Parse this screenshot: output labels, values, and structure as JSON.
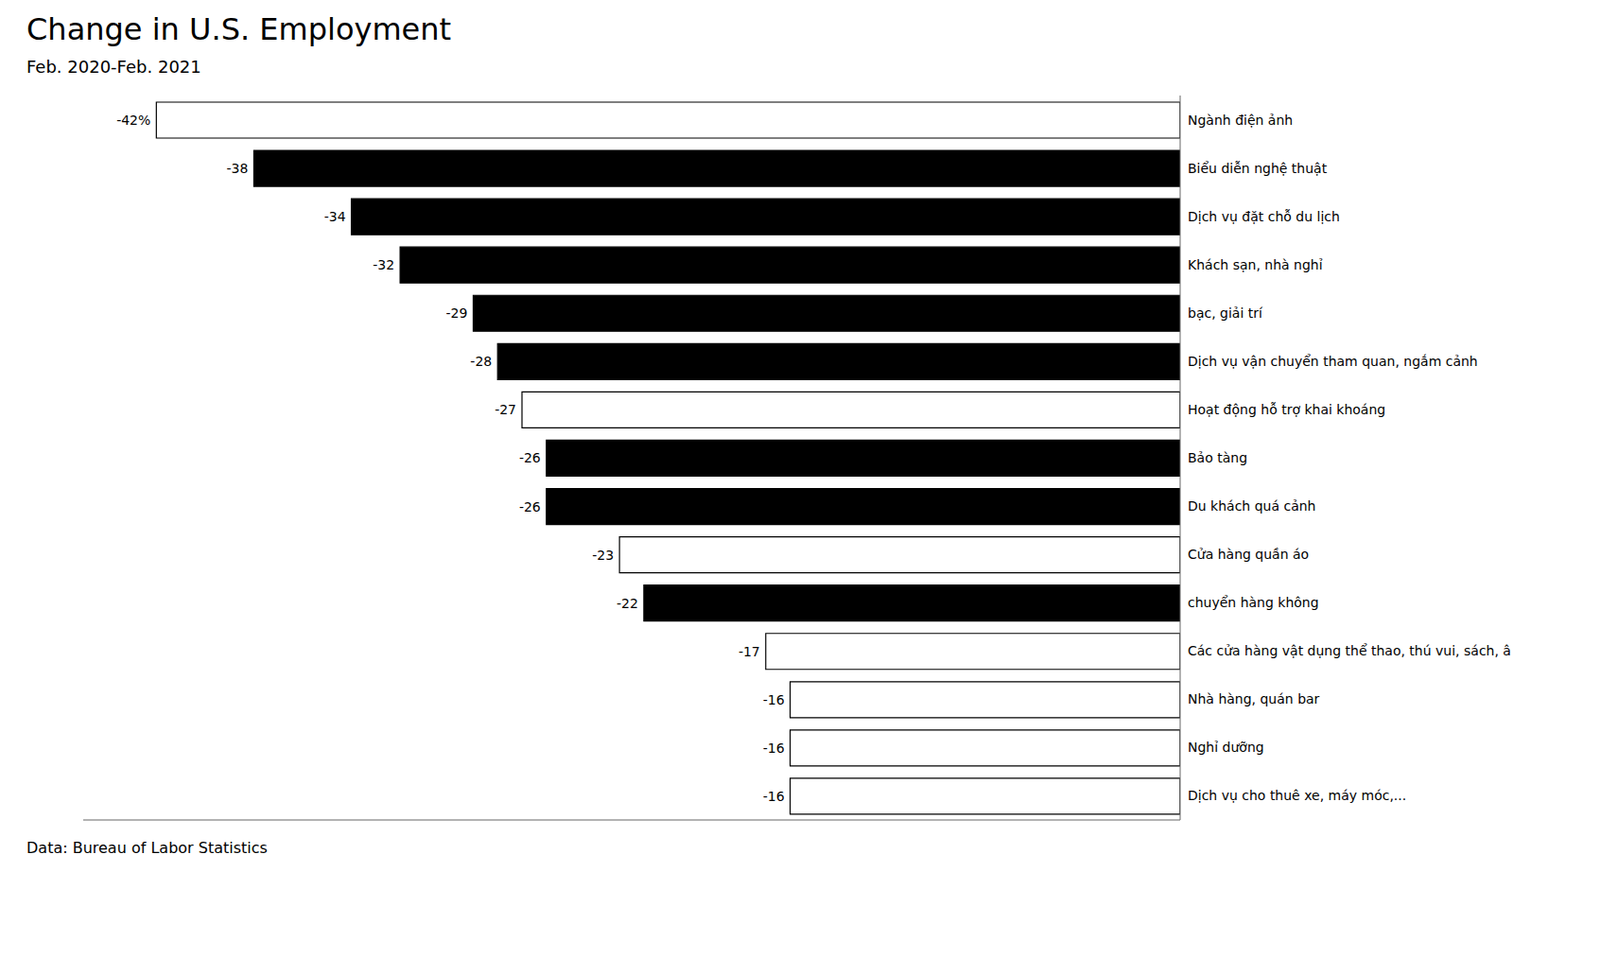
{
  "chart_data": {
    "type": "bar",
    "orientation": "horizontal",
    "title": "Change in U.S. Employment",
    "subtitle": "Feb. 2020-Feb. 2021",
    "footnote": "Data: Bureau of Labor Statistics",
    "categories": [
      "Ngành điện ảnh",
      "Biểu diễn nghệ thuật",
      "Dịch vụ đặt chỗ du lịch",
      "Khách sạn, nhà nghỉ",
      "bạc, giải trí",
      "Dịch vụ vận chuyển tham quan, ngắm cảnh",
      "Hoạt động hỗ trợ khai khoáng",
      "Bảo tàng",
      "Du khách quá cảnh",
      "Cửa hàng quần áo",
      "chuyển hàng không",
      "Các cửa hàng vật dụng thể thao, thú vui, sách, â",
      "Nhà hàng, quán bar",
      "Nghỉ dưỡng",
      "Dịch vụ cho thuê xe, máy móc,..."
    ],
    "values": [
      -42,
      -38,
      -34,
      -32,
      -29,
      -28,
      -27,
      -26,
      -26,
      -23,
      -22,
      -17,
      -16,
      -16,
      -16
    ],
    "value_labels": [
      "-42%",
      "-38",
      "-34",
      "-32",
      "-29",
      "-28",
      "-27",
      "-26",
      "-26",
      "-23",
      "-22",
      "-17",
      "-16",
      "-16",
      "-16"
    ],
    "colors": [
      "#ffffff",
      "#000000",
      "#000000",
      "#000000",
      "#000000",
      "#000000",
      "#ffffff",
      "#000000",
      "#000000",
      "#ffffff",
      "#000000",
      "#ffffff",
      "#ffffff",
      "#ffffff",
      "#ffffff"
    ],
    "xlim": [
      -45,
      0
    ],
    "data_labels": true,
    "tick_labels": "y",
    "grid": false
  }
}
